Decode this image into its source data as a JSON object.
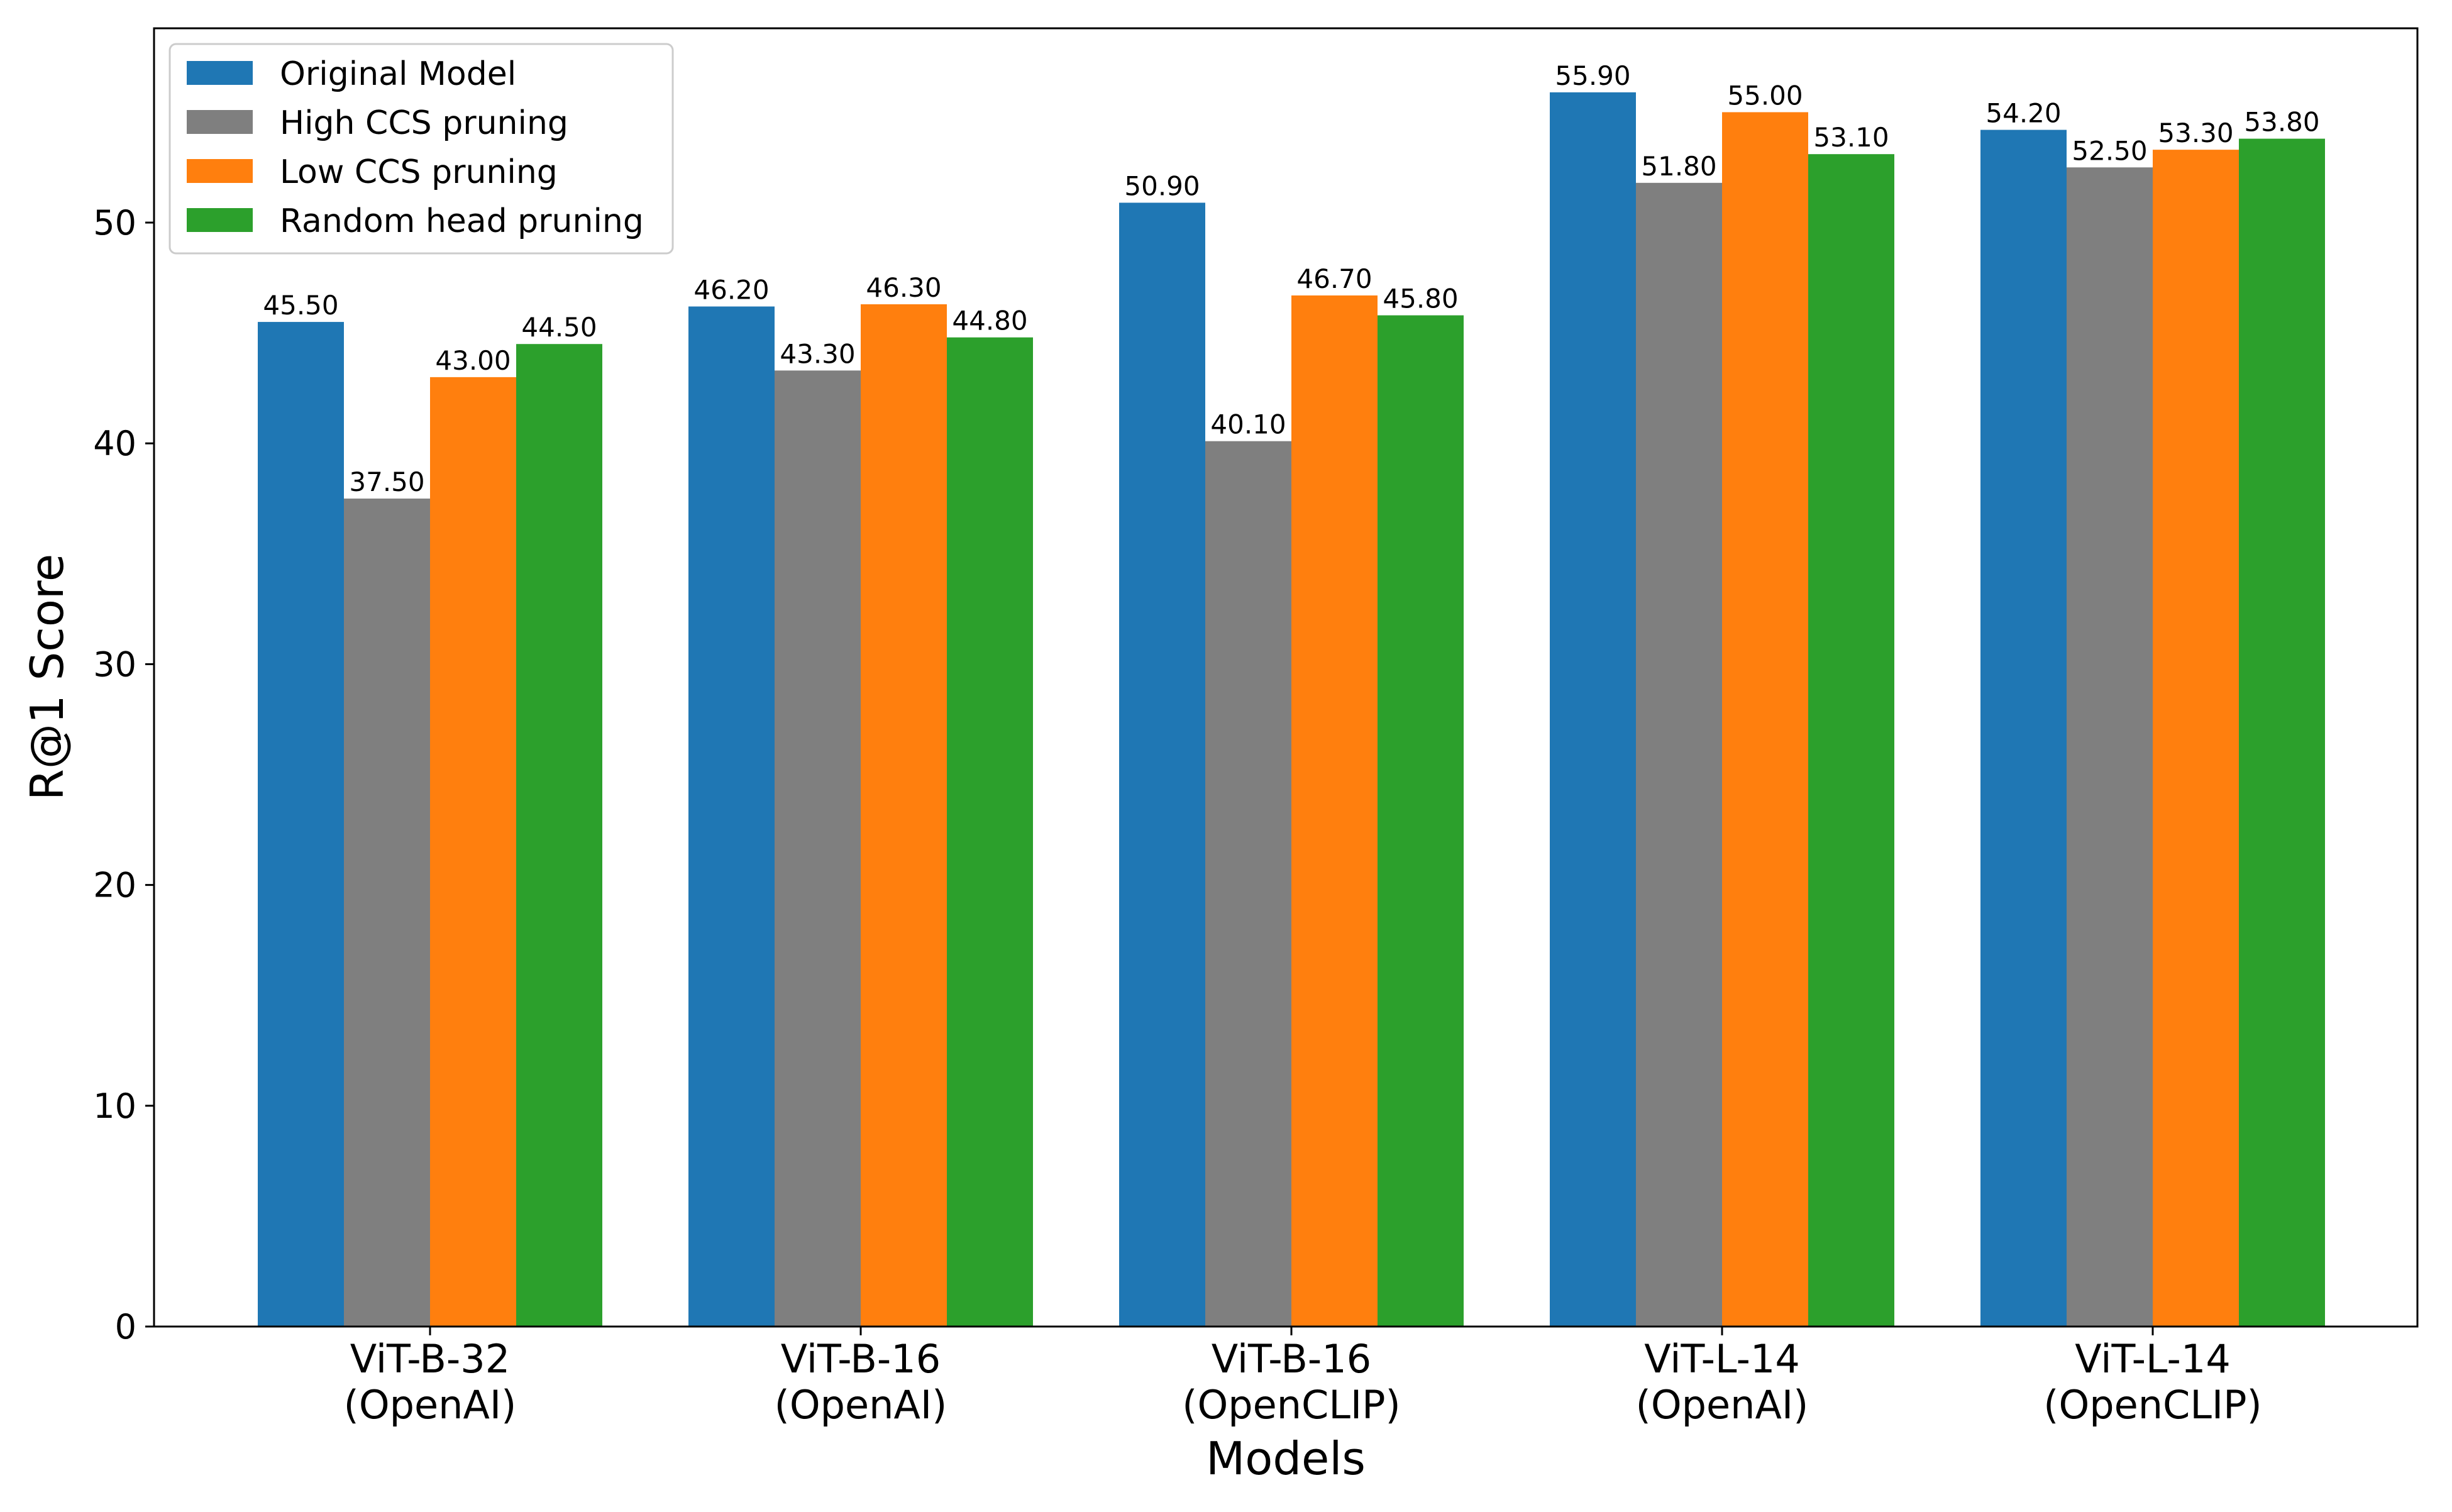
{
  "chart_data": {
    "type": "bar",
    "title": "",
    "xlabel": "Models",
    "ylabel": "R@1 Score",
    "ylim": [
      0,
      58.8
    ],
    "yticks": [
      0,
      10,
      20,
      30,
      40,
      50
    ],
    "grid": false,
    "legend_position": "top-left",
    "categories": [
      [
        "ViT-B-32",
        "(OpenAI)"
      ],
      [
        "ViT-B-16",
        "(OpenAI)"
      ],
      [
        "ViT-B-16",
        "(OpenCLIP)"
      ],
      [
        "ViT-L-14",
        "(OpenAI)"
      ],
      [
        "ViT-L-14",
        "(OpenCLIP)"
      ]
    ],
    "series": [
      {
        "name": "Original Model",
        "color": "#1f77b4",
        "values": [
          45.5,
          46.2,
          50.9,
          55.9,
          54.2
        ],
        "labels": [
          "45.50",
          "46.20",
          "50.90",
          "55.90",
          "54.20"
        ]
      },
      {
        "name": "High CCS pruning",
        "color": "#7f7f7f",
        "values": [
          37.5,
          43.3,
          40.1,
          51.8,
          52.5
        ],
        "labels": [
          "37.50",
          "43.30",
          "40.10",
          "51.80",
          "52.50"
        ]
      },
      {
        "name": "Low CCS pruning",
        "color": "#ff7f0e",
        "values": [
          43.0,
          46.3,
          46.7,
          55.0,
          53.3
        ],
        "labels": [
          "43.00",
          "46.30",
          "46.70",
          "55.00",
          "53.30"
        ]
      },
      {
        "name": "Random head pruning",
        "color": "#2ca02c",
        "values": [
          44.5,
          44.8,
          45.8,
          53.1,
          53.8
        ],
        "labels": [
          "44.50",
          "44.80",
          "45.80",
          "53.10",
          "53.80"
        ]
      }
    ]
  }
}
